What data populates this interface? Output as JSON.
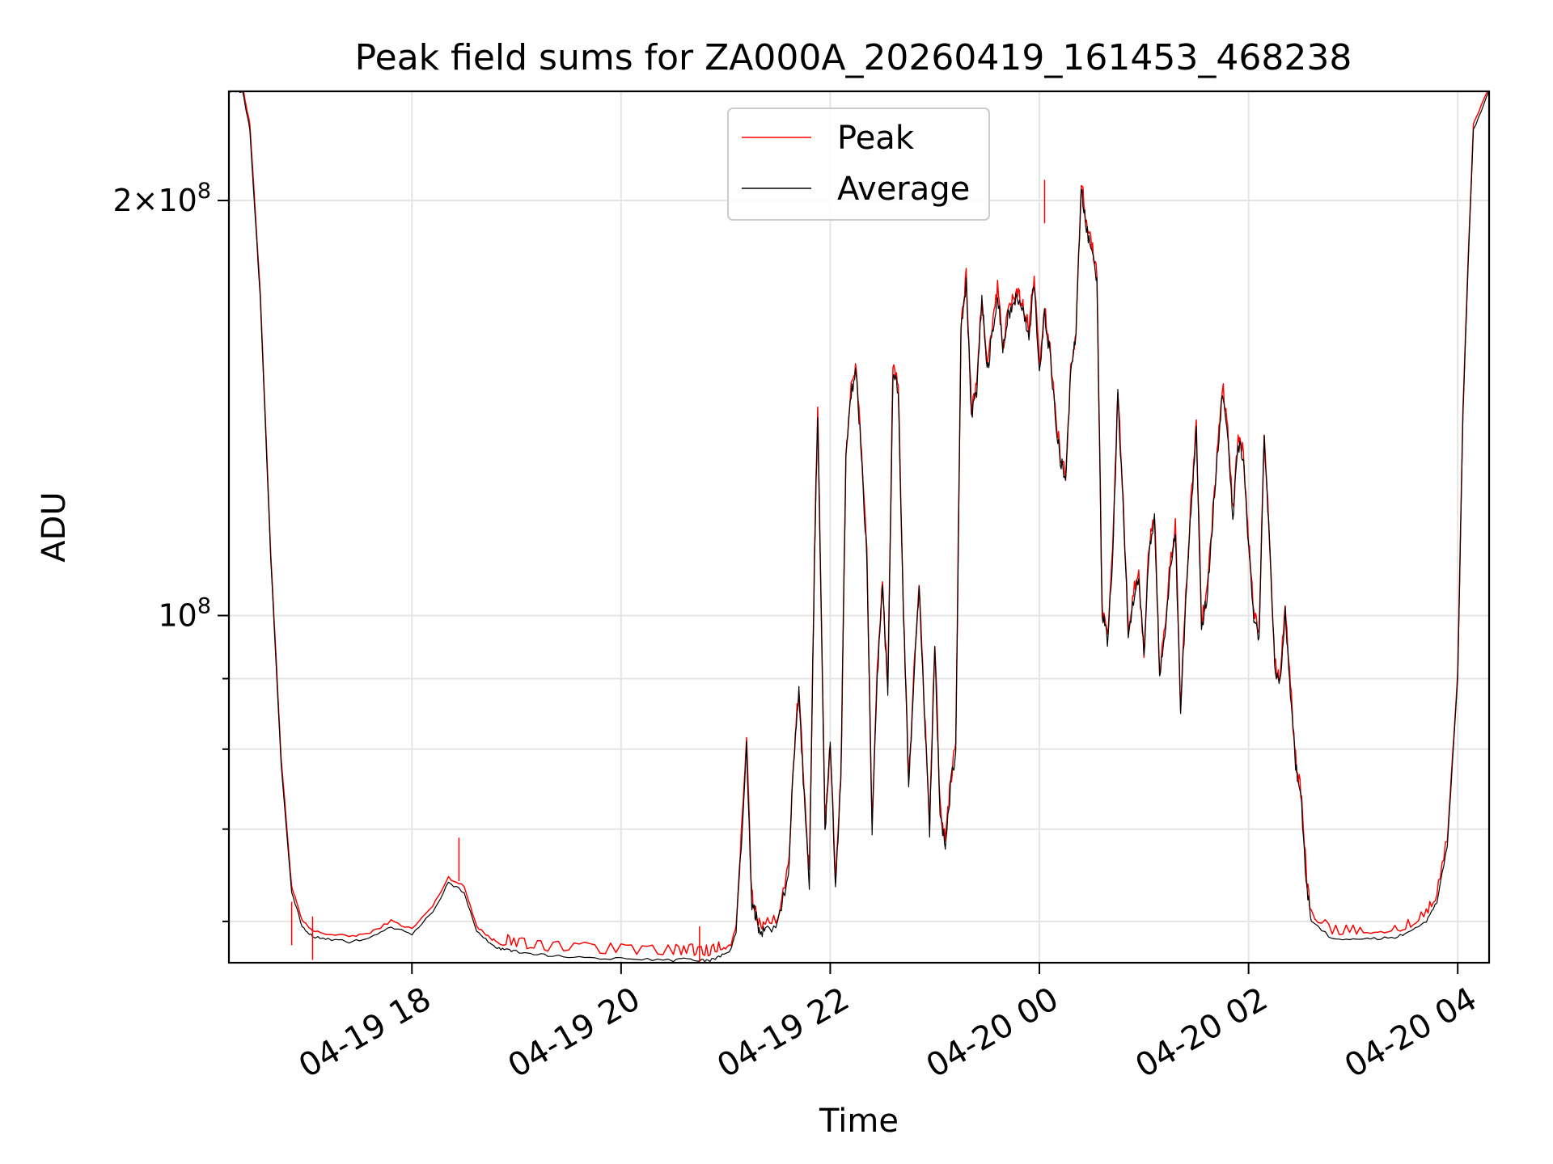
{
  "chart_data": {
    "type": "line",
    "title": "Peak field sums for ZA000A_20260419_161453_468238",
    "xlabel": "Time",
    "ylabel": "ADU",
    "yscale": "log",
    "grid": true,
    "legend_position": "top-center",
    "xlim_hours_since_0419_0000": [
      16.25,
      28.3
    ],
    "ylim": [
      56000000,
      240000000
    ],
    "x_ticks": [
      {
        "hour": 18,
        "label": "04-19 18"
      },
      {
        "hour": 20,
        "label": "04-19 20"
      },
      {
        "hour": 22,
        "label": "04-19 22"
      },
      {
        "hour": 24,
        "label": "04-20 00"
      },
      {
        "hour": 26,
        "label": "04-20 02"
      },
      {
        "hour": 28,
        "label": "04-20 04"
      }
    ],
    "y_ticks": [
      {
        "value": 200000000,
        "mantissa": "2",
        "exp": "8",
        "major": true
      },
      {
        "value": 100000000,
        "mantissa": "",
        "exp": "8",
        "major": true
      },
      {
        "value": 90000000,
        "major": false
      },
      {
        "value": 80000000,
        "major": false
      },
      {
        "value": 70000000,
        "major": false
      },
      {
        "value": 60000000,
        "major": false
      }
    ],
    "series": [
      {
        "name": "Peak",
        "color": "#ff0000",
        "offset": 0.004
      },
      {
        "name": "Average",
        "color": "#000000",
        "offset": 0.0
      }
    ],
    "x": [
      16.25,
      16.38,
      16.45,
      16.55,
      16.65,
      16.75,
      16.85,
      16.95,
      17.05,
      17.2,
      17.4,
      17.6,
      17.8,
      18.0,
      18.2,
      18.35,
      18.5,
      18.62,
      18.75,
      18.85,
      18.95,
      19.1,
      19.3,
      19.6,
      19.9,
      20.2,
      20.5,
      20.65,
      20.75,
      20.85,
      20.95,
      21.05,
      21.1,
      21.2,
      21.25,
      21.28,
      21.32,
      21.38,
      21.5,
      21.6,
      21.65,
      21.7,
      21.75,
      21.8,
      21.85,
      21.88,
      21.9,
      21.95,
      22.0,
      22.05,
      22.1,
      22.15,
      22.2,
      22.25,
      22.3,
      22.35,
      22.4,
      22.45,
      22.5,
      22.55,
      22.6,
      22.65,
      22.7,
      22.75,
      22.8,
      22.85,
      22.9,
      22.95,
      23.0,
      23.05,
      23.1,
      23.15,
      23.2,
      23.25,
      23.3,
      23.35,
      23.4,
      23.45,
      23.5,
      23.55,
      23.6,
      23.65,
      23.7,
      23.75,
      23.8,
      23.85,
      23.9,
      23.95,
      24.0,
      24.05,
      24.1,
      24.15,
      24.2,
      24.25,
      24.3,
      24.35,
      24.4,
      24.45,
      24.5,
      24.55,
      24.6,
      24.65,
      24.7,
      24.75,
      24.8,
      24.85,
      24.9,
      24.95,
      25.0,
      25.05,
      25.1,
      25.15,
      25.2,
      25.25,
      25.3,
      25.35,
      25.4,
      25.45,
      25.5,
      25.55,
      25.6,
      25.65,
      25.7,
      25.75,
      25.8,
      25.85,
      25.9,
      25.95,
      26.0,
      26.05,
      26.1,
      26.15,
      26.2,
      26.25,
      26.3,
      26.35,
      26.4,
      26.45,
      26.5,
      26.55,
      26.6,
      26.8,
      27.0,
      27.2,
      27.4,
      27.55,
      27.7,
      27.8,
      27.9,
      28.0,
      28.05,
      28.1,
      28.15,
      28.3
    ],
    "values": [
      240000000,
      240000000,
      225000000,
      170000000,
      110000000,
      78000000,
      63000000,
      59500000,
      58500000,
      58200000,
      58000000,
      58300000,
      59500000,
      58700000,
      61000000,
      64000000,
      63000000,
      59000000,
      57800000,
      57300000,
      57100000,
      56900000,
      56700000,
      56500000,
      56400000,
      56300000,
      56200000,
      56400000,
      56200000,
      56200000,
      56600000,
      57200000,
      59000000,
      80000000,
      62000000,
      61000000,
      59000000,
      59500000,
      60000000,
      65000000,
      78000000,
      88000000,
      74000000,
      64000000,
      110000000,
      140000000,
      115000000,
      70000000,
      80000000,
      64000000,
      75000000,
      130000000,
      145000000,
      150000000,
      130000000,
      110000000,
      70000000,
      90000000,
      105000000,
      88000000,
      150000000,
      145000000,
      100000000,
      75000000,
      90000000,
      105000000,
      85000000,
      70000000,
      95000000,
      72000000,
      68000000,
      75000000,
      80000000,
      160000000,
      175000000,
      140000000,
      145000000,
      170000000,
      150000000,
      160000000,
      172000000,
      155000000,
      165000000,
      168000000,
      170000000,
      165000000,
      160000000,
      175000000,
      150000000,
      165000000,
      155000000,
      140000000,
      130000000,
      125000000,
      150000000,
      160000000,
      205000000,
      190000000,
      185000000,
      175000000,
      100000000,
      96000000,
      110000000,
      145000000,
      120000000,
      97000000,
      103000000,
      106000000,
      93000000,
      112000000,
      118000000,
      90000000,
      97000000,
      108000000,
      115000000,
      85000000,
      102000000,
      120000000,
      136000000,
      98000000,
      103000000,
      115000000,
      130000000,
      146000000,
      135000000,
      118000000,
      133000000,
      130000000,
      112000000,
      100000000,
      96000000,
      135000000,
      113000000,
      92000000,
      89000000,
      101000000,
      88000000,
      78000000,
      74000000,
      64000000,
      60000000,
      58300000,
      58300000,
      58300000,
      58400000,
      59000000,
      60000000,
      62000000,
      68000000,
      90000000,
      140000000,
      180000000,
      225000000,
      240000000
    ],
    "peak_spikes": [
      [
        16.85,
        62000000
      ],
      [
        17.05,
        60500000
      ],
      [
        18.45,
        69000000
      ],
      [
        20.75,
        59500000
      ],
      [
        24.05,
        207000000
      ]
    ]
  }
}
